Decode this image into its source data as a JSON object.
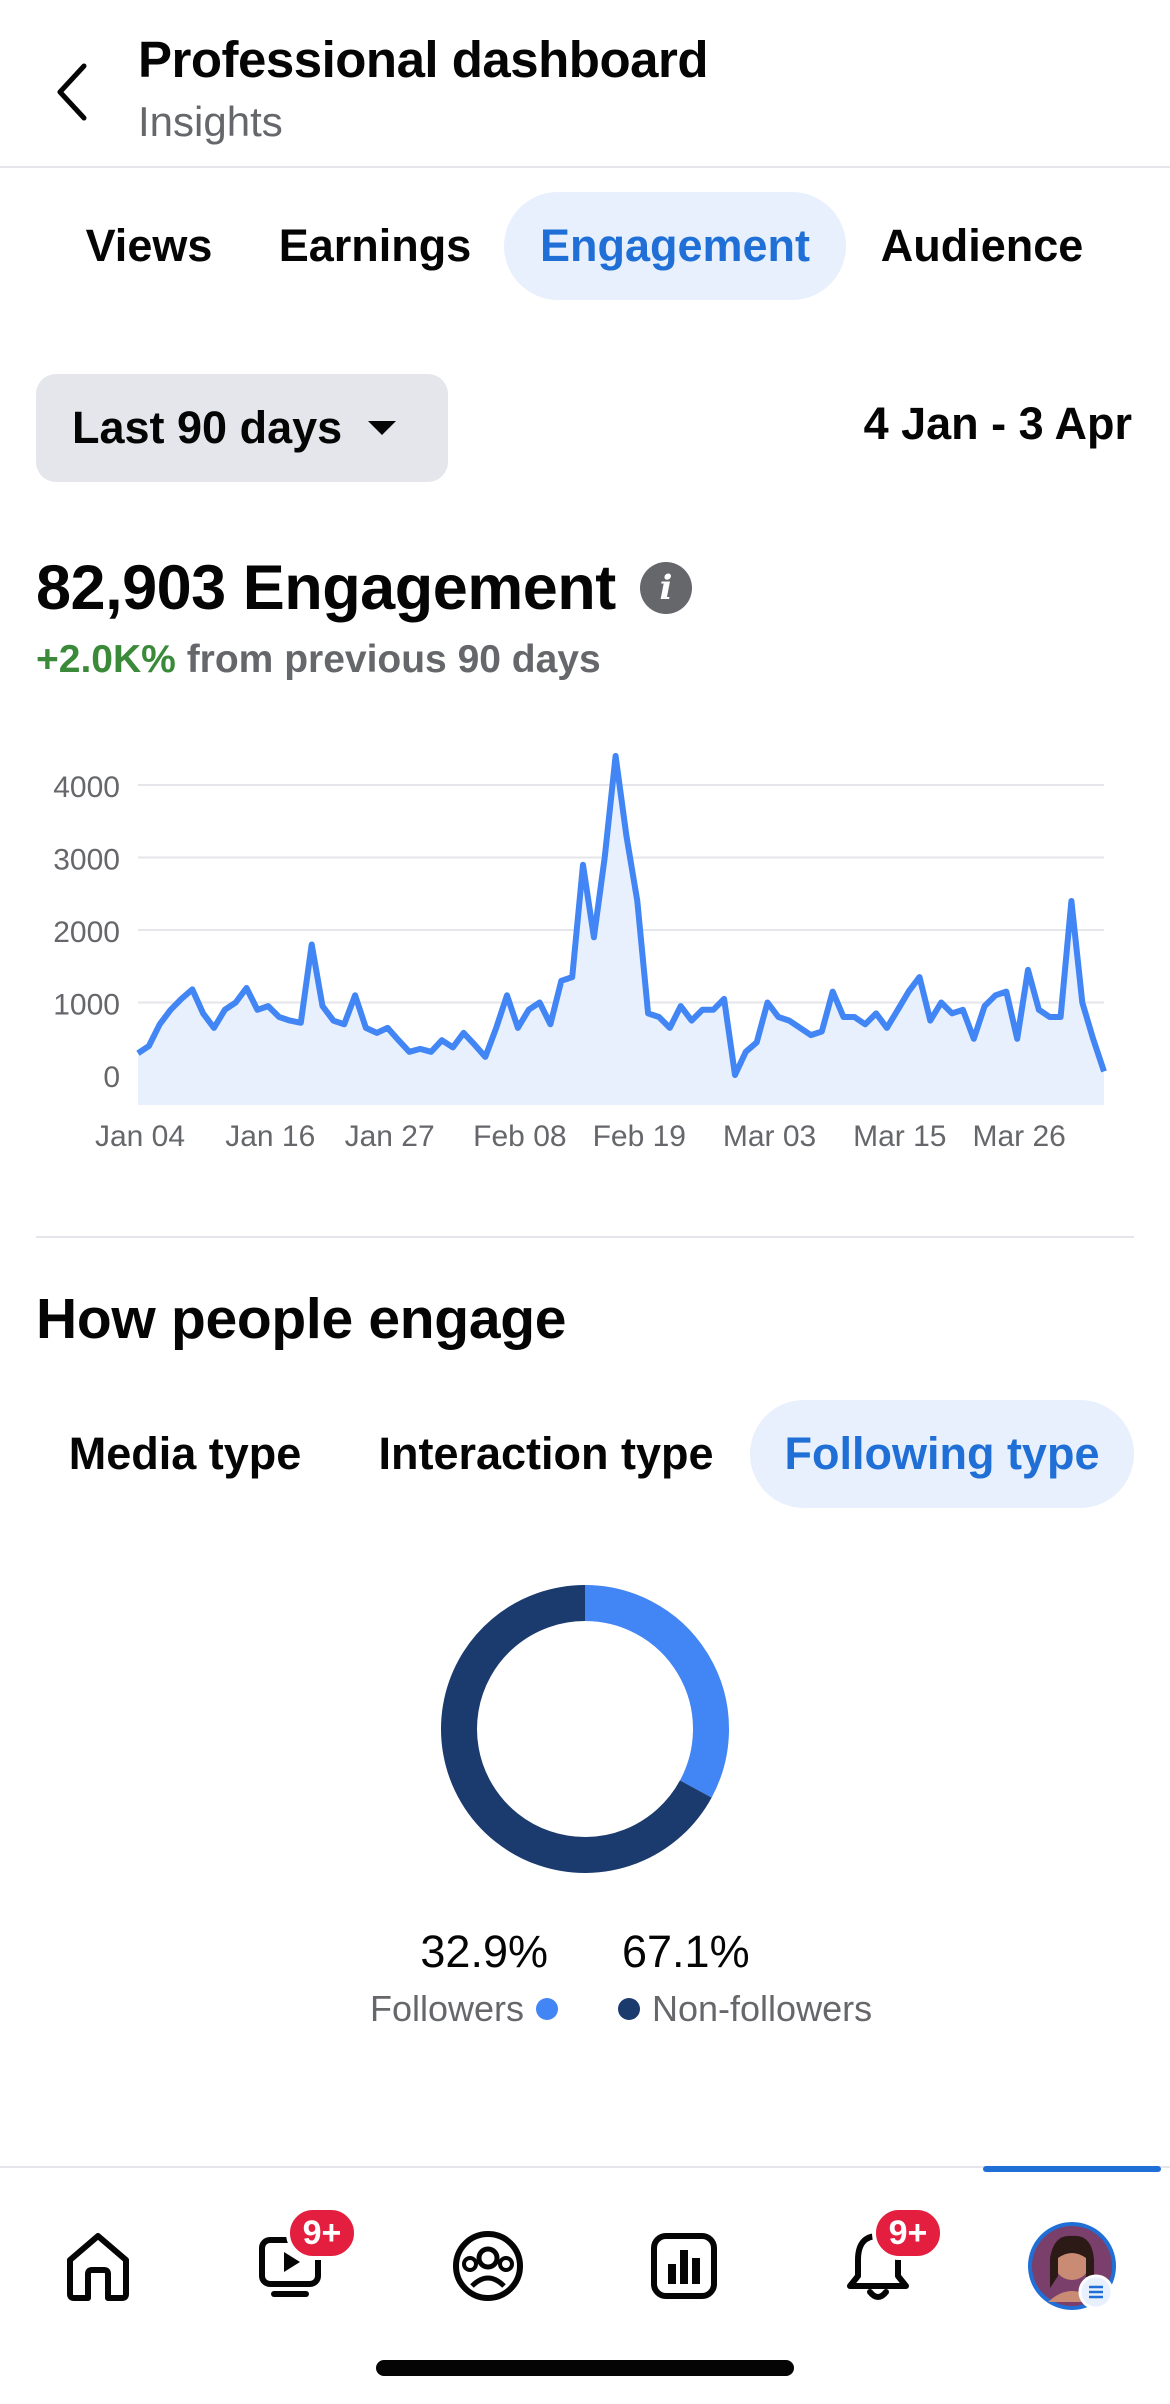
{
  "header": {
    "title": "Professional dashboard",
    "subtitle": "Insights"
  },
  "tabs": [
    {
      "label": "Views",
      "active": false
    },
    {
      "label": "Earnings",
      "active": false
    },
    {
      "label": "Engagement",
      "active": true
    },
    {
      "label": "Audience",
      "active": false
    }
  ],
  "range": {
    "selected": "Last 90 days",
    "dates": "4 Jan - 3 Apr"
  },
  "metric": {
    "value": "82,903 Engagement",
    "delta": "+2.0K%",
    "delta_suffix": "from previous 90 days"
  },
  "chart_data": {
    "type": "area",
    "title": "",
    "xlabel": "",
    "ylabel": "",
    "ylim": [
      0,
      4500
    ],
    "yticks": [
      0,
      1000,
      2000,
      3000,
      4000
    ],
    "xtick_labels": [
      "Jan 04",
      "Jan 16",
      "Jan 27",
      "Feb 08",
      "Feb 19",
      "Mar 03",
      "Mar 15",
      "Mar 26"
    ],
    "xtick_index": [
      0,
      12,
      23,
      35,
      46,
      58,
      70,
      81
    ],
    "grid": true,
    "color": "#4285f4",
    "values": [
      300,
      400,
      700,
      900,
      1050,
      1180,
      850,
      650,
      900,
      1000,
      1200,
      900,
      950,
      800,
      750,
      720,
      1800,
      950,
      750,
      700,
      1100,
      650,
      580,
      650,
      480,
      320,
      360,
      320,
      480,
      380,
      580,
      420,
      250,
      650,
      1100,
      650,
      900,
      1000,
      700,
      1300,
      1350,
      2900,
      1900,
      3000,
      4400,
      3300,
      2400,
      850,
      800,
      650,
      950,
      750,
      900,
      900,
      1050,
      0,
      320,
      450,
      1000,
      800,
      750,
      650,
      550,
      600,
      1150,
      800,
      800,
      700,
      850,
      650,
      900,
      1150,
      1350,
      750,
      1000,
      850,
      900,
      500,
      950,
      1100,
      1150,
      500,
      1450,
      900,
      800,
      800,
      2400,
      1000,
      500,
      50
    ]
  },
  "section": {
    "title": "How people engage",
    "subtabs": [
      {
        "label": "Media type",
        "active": false
      },
      {
        "label": "Interaction type",
        "active": false
      },
      {
        "label": "Following type",
        "active": true
      }
    ]
  },
  "donut": {
    "segments": [
      {
        "label": "Followers",
        "pct_label": "32.9%",
        "value": 32.9,
        "color": "#4285f4"
      },
      {
        "label": "Non-followers",
        "pct_label": "67.1%",
        "value": 67.1,
        "color": "#1b3a6e"
      }
    ]
  },
  "nav": {
    "items": [
      {
        "icon": "home-icon"
      },
      {
        "icon": "video-icon",
        "badge": "9+"
      },
      {
        "icon": "groups-icon"
      },
      {
        "icon": "dashboard-icon"
      },
      {
        "icon": "bell-icon",
        "badge": "9+"
      },
      {
        "icon": "profile-avatar"
      }
    ]
  }
}
